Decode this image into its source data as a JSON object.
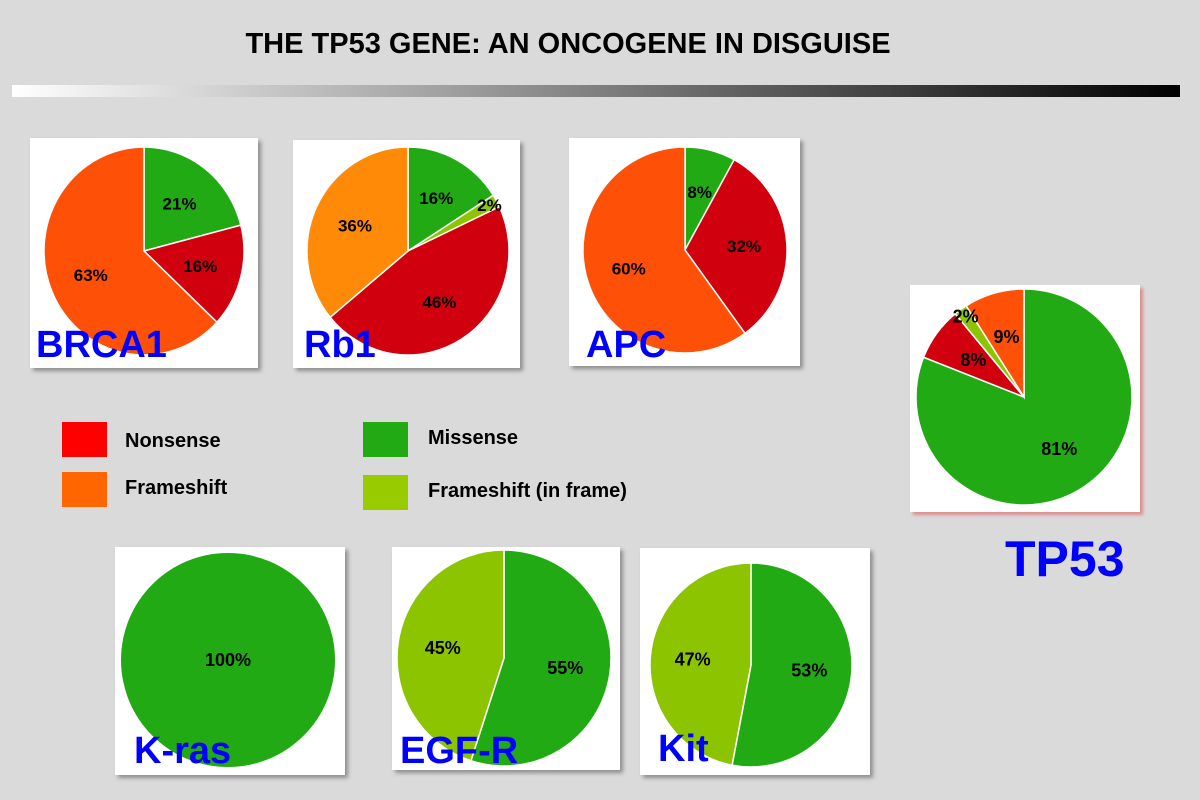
{
  "title": "THE TP53 GENE: AN ONCOGENE IN DISGUISE",
  "legend": [
    {
      "label": "Nonsense",
      "color": "#ff0000"
    },
    {
      "label": "Frameshift",
      "color": "#ff6600"
    },
    {
      "label": "Missense",
      "color": "#22aa14"
    },
    {
      "label": "Frameshift (in frame)",
      "color": "#99cc00"
    }
  ],
  "chart_data": [
    {
      "type": "pie",
      "title": "BRCA1",
      "slices": [
        {
          "category": "Missense",
          "value": 21,
          "label": "21%",
          "color": "#22aa14"
        },
        {
          "category": "Nonsense",
          "value": 16,
          "label": "16%",
          "color": "#d0000f"
        },
        {
          "category": "Frameshift",
          "value": 63,
          "label": "63%",
          "color": "#ff5008"
        }
      ]
    },
    {
      "type": "pie",
      "title": "Rb1",
      "slices": [
        {
          "category": "Missense",
          "value": 16,
          "label": "16%",
          "color": "#22aa14"
        },
        {
          "category": "Frameshift (in frame)",
          "value": 2,
          "label": "2%",
          "color": "#8cc400"
        },
        {
          "category": "Nonsense",
          "value": 46,
          "label": "46%",
          "color": "#d0000f"
        },
        {
          "category": "Frameshift",
          "value": 36,
          "label": "36%",
          "color": "#ff8a08"
        }
      ]
    },
    {
      "type": "pie",
      "title": "APC",
      "slices": [
        {
          "category": "Missense",
          "value": 8,
          "label": "8%",
          "color": "#22aa14"
        },
        {
          "category": "Nonsense",
          "value": 32,
          "label": "32%",
          "color": "#d0000f"
        },
        {
          "category": "Frameshift",
          "value": 60,
          "label": "60%",
          "color": "#ff5008"
        }
      ]
    },
    {
      "type": "pie",
      "title": "TP53",
      "slices": [
        {
          "category": "Missense",
          "value": 81,
          "label": "81%",
          "color": "#22aa14"
        },
        {
          "category": "Nonsense",
          "value": 8,
          "label": "8%",
          "color": "#d0000f"
        },
        {
          "category": "Frameshift (in frame)",
          "value": 2,
          "label": "2%",
          "color": "#8cc400"
        },
        {
          "category": "Frameshift",
          "value": 9,
          "label": "9%",
          "color": "#ff5008"
        }
      ]
    },
    {
      "type": "pie",
      "title": "K-ras",
      "slices": [
        {
          "category": "Missense",
          "value": 100,
          "label": "100%",
          "color": "#22aa14"
        }
      ]
    },
    {
      "type": "pie",
      "title": "EGF-R",
      "slices": [
        {
          "category": "Missense",
          "value": 55,
          "label": "55%",
          "color": "#22aa14"
        },
        {
          "category": "Frameshift (in frame)",
          "value": 45,
          "label": "45%",
          "color": "#8cc400"
        }
      ]
    },
    {
      "type": "pie",
      "title": "Kit",
      "slices": [
        {
          "category": "Missense",
          "value": 53,
          "label": "53%",
          "color": "#22aa14"
        },
        {
          "category": "Frameshift (in frame)",
          "value": 47,
          "label": "47%",
          "color": "#8cc400"
        }
      ]
    }
  ]
}
